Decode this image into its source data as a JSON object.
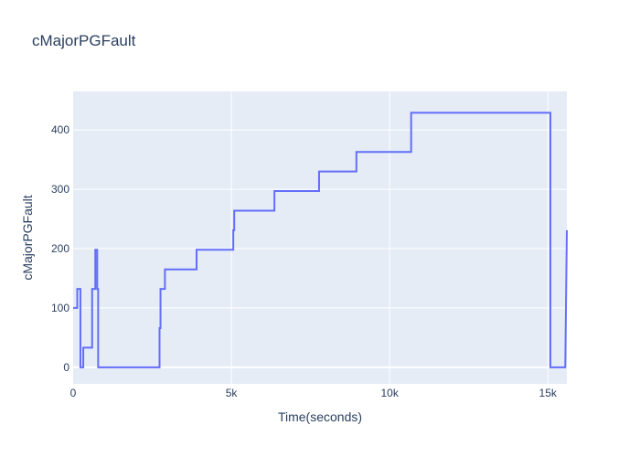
{
  "chart_data": {
    "type": "line",
    "title": "cMajorPGFault",
    "xlabel": "Time(seconds)",
    "ylabel": "cMajorPGFault",
    "xlim": [
      0,
      15600
    ],
    "ylim": [
      -28,
      465
    ],
    "grid": true,
    "legend": "none",
    "colors": {
      "plot_background": "#e5ecf6",
      "grid": "#ffffff",
      "line": "#636efa",
      "text": "#2a3f5f"
    },
    "x_ticks": [
      {
        "value": 0,
        "label": "0"
      },
      {
        "value": 5000,
        "label": "5k"
      },
      {
        "value": 10000,
        "label": "10k"
      },
      {
        "value": 15000,
        "label": "15k"
      }
    ],
    "y_ticks": [
      {
        "value": 0,
        "label": "0"
      },
      {
        "value": 100,
        "label": "100"
      },
      {
        "value": 200,
        "label": "200"
      },
      {
        "value": 300,
        "label": "300"
      },
      {
        "value": 400,
        "label": "400"
      }
    ],
    "series": [
      {
        "x": [
          0,
          130,
          130,
          230,
          230,
          320,
          320,
          600,
          600,
          700,
          700,
          760,
          760,
          790,
          790,
          2730,
          2730,
          2760,
          2760,
          2900,
          2900,
          3900,
          3900,
          5060,
          5060,
          5090,
          5090,
          6360,
          6360,
          7770,
          7770,
          8950,
          8950,
          10680,
          10680,
          15080,
          15080,
          15550,
          15550,
          15600
        ],
        "y": [
          100,
          100,
          132,
          132,
          0,
          0,
          33,
          33,
          132,
          132,
          198,
          198,
          132,
          132,
          0,
          0,
          66,
          66,
          132,
          132,
          165,
          165,
          198,
          198,
          231,
          231,
          264,
          264,
          297,
          297,
          330,
          330,
          363,
          363,
          429,
          429,
          0,
          0,
          0,
          231
        ]
      }
    ]
  }
}
